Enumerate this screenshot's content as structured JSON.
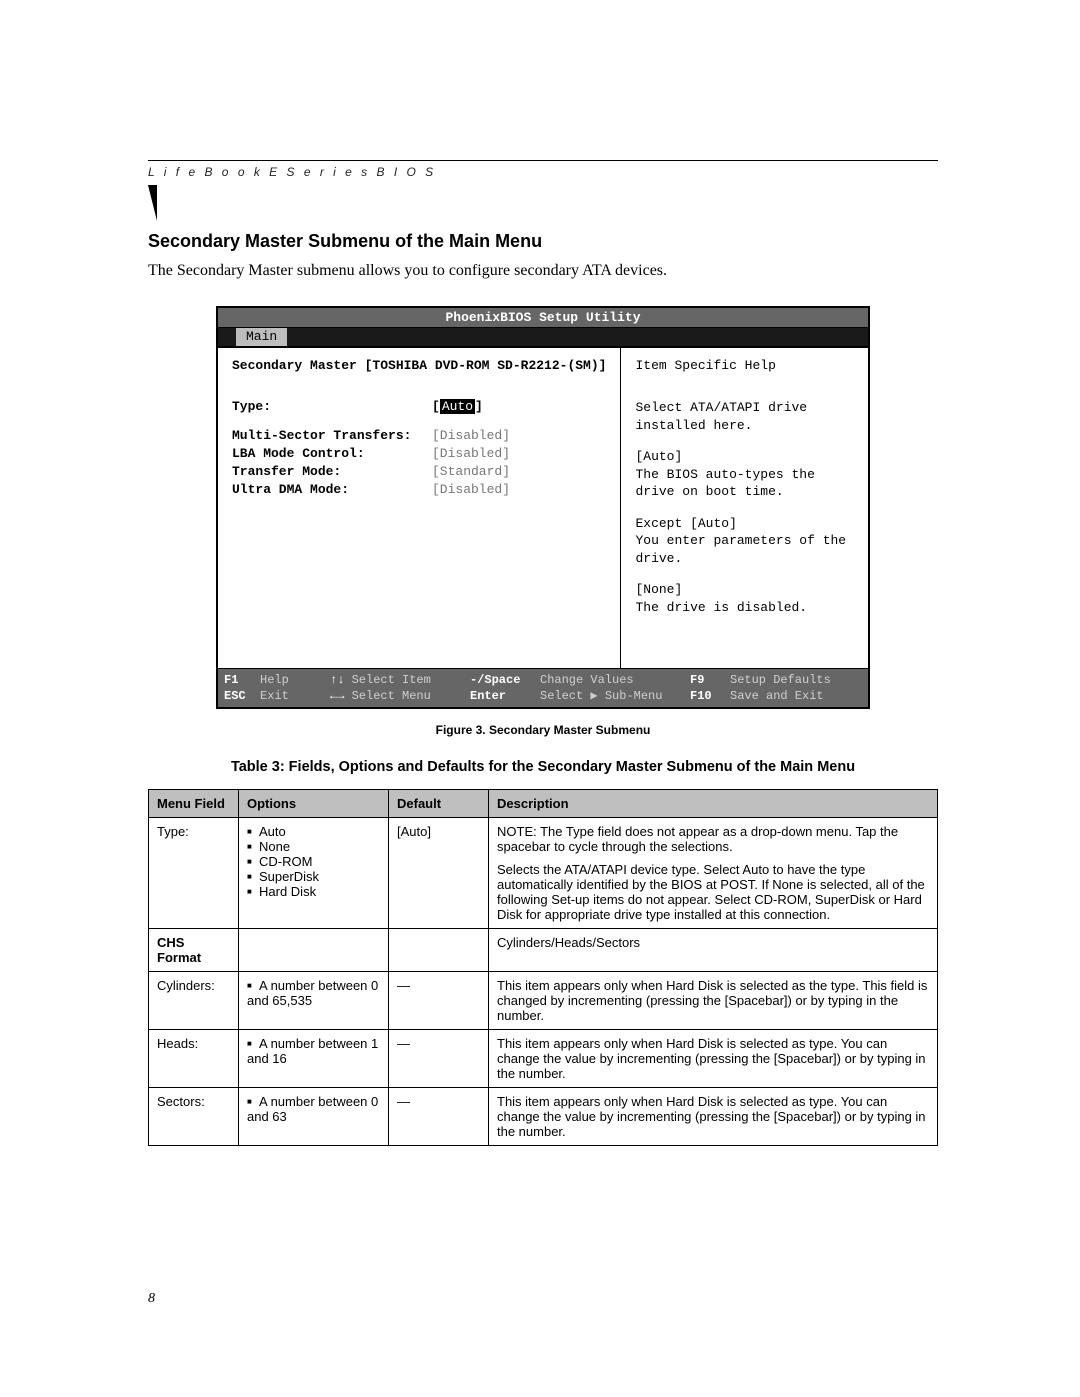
{
  "running_head": "L i f e B o o k   E   S e r i e s   B I O S",
  "section_title": "Secondary Master Submenu of the Main Menu",
  "intro": "The Secondary Master submenu allows you to configure secondary ATA devices.",
  "bios": {
    "title": "PhoenixBIOS Setup Utility",
    "tab": "Main",
    "left_header": "Secondary Master [TOSHIBA DVD-ROM SD-R2212-(SM)]",
    "right_header": "Item Specific Help",
    "fields": [
      {
        "label": "Type:",
        "value": "Auto",
        "selected": true
      },
      {
        "label": "Multi-Sector Transfers:",
        "value": "[Disabled]",
        "selected": false
      },
      {
        "label": "LBA Mode Control:",
        "value": "[Disabled]",
        "selected": false
      },
      {
        "label": "Transfer Mode:",
        "value": "[Standard]",
        "selected": false
      },
      {
        "label": "Ultra DMA Mode:",
        "value": "[Disabled]",
        "selected": false
      }
    ],
    "help": [
      "Select ATA/ATAPI drive installed here.",
      "[Auto]\nThe BIOS auto-types the drive on boot time.",
      "Except [Auto]\nYou enter parameters of the drive.",
      "[None]\nThe drive is disabled."
    ],
    "footer": {
      "row1": {
        "k1": "F1",
        "t1": "Help",
        "a1": "↑↓",
        "t2": "Select Item",
        "k2": "-/Space",
        "t3": "Change Values",
        "k3": "F9",
        "t4": "Setup Defaults"
      },
      "row2": {
        "k1": "ESC",
        "t1": "Exit",
        "a1": "←→",
        "t2": "Select Menu",
        "k2": "Enter",
        "t3": "Select ▶ Sub-Menu",
        "k3": "F10",
        "t4": "Save and Exit"
      }
    }
  },
  "figcap": "Figure 3.  Secondary Master Submenu",
  "table_title": "Table 3: Fields, Options and Defaults for the Secondary Master Submenu of the Main Menu",
  "table": {
    "headers": [
      "Menu Field",
      "Options",
      "Default",
      "Description"
    ],
    "rows": [
      {
        "menu": "Type:",
        "options": [
          "Auto",
          "None",
          "CD-ROM",
          "SuperDisk",
          "Hard Disk"
        ],
        "default_": "[Auto]",
        "desc": [
          "NOTE: The Type field does not appear as a drop-down menu. Tap the spacebar to cycle through the selections.",
          "Selects the ATA/ATAPI device type. Select Auto to have the type automatically identified by the BIOS at POST. If None is selected, all of the following Set-up items do not appear. Select CD-ROM, SuperDisk or Hard Disk for appropriate drive type installed at this connection."
        ]
      },
      {
        "subhead": true,
        "menu": "CHS Format",
        "desc_single": "Cylinders/Heads/Sectors"
      },
      {
        "menu": "Cylinders:",
        "options": [
          "A number between 0 and 65,535"
        ],
        "default_": "—",
        "desc": [
          "This item appears only when Hard Disk is selected as the type. This field is changed by incrementing (pressing the [Spacebar]) or by typing in the number."
        ]
      },
      {
        "menu": "Heads:",
        "options": [
          "A number between 1 and 16"
        ],
        "default_": "—",
        "desc": [
          "This item appears only when Hard Disk is selected as type. You can change the value by incrementing (pressing the [Spacebar]) or by typing in the number."
        ]
      },
      {
        "menu": "Sectors:",
        "options": [
          "A number between 0 and 63"
        ],
        "default_": "—",
        "desc": [
          "This item appears only when Hard Disk is selected as type. You can change the value by incrementing (pressing the [Spacebar]) or by typing in the number."
        ]
      }
    ]
  },
  "page_number": "8",
  "colors": {
    "header_gray": "#666666",
    "tab_gray": "#bdbdbd",
    "table_header": "#bfbfbf",
    "dim_text": "#777777"
  }
}
